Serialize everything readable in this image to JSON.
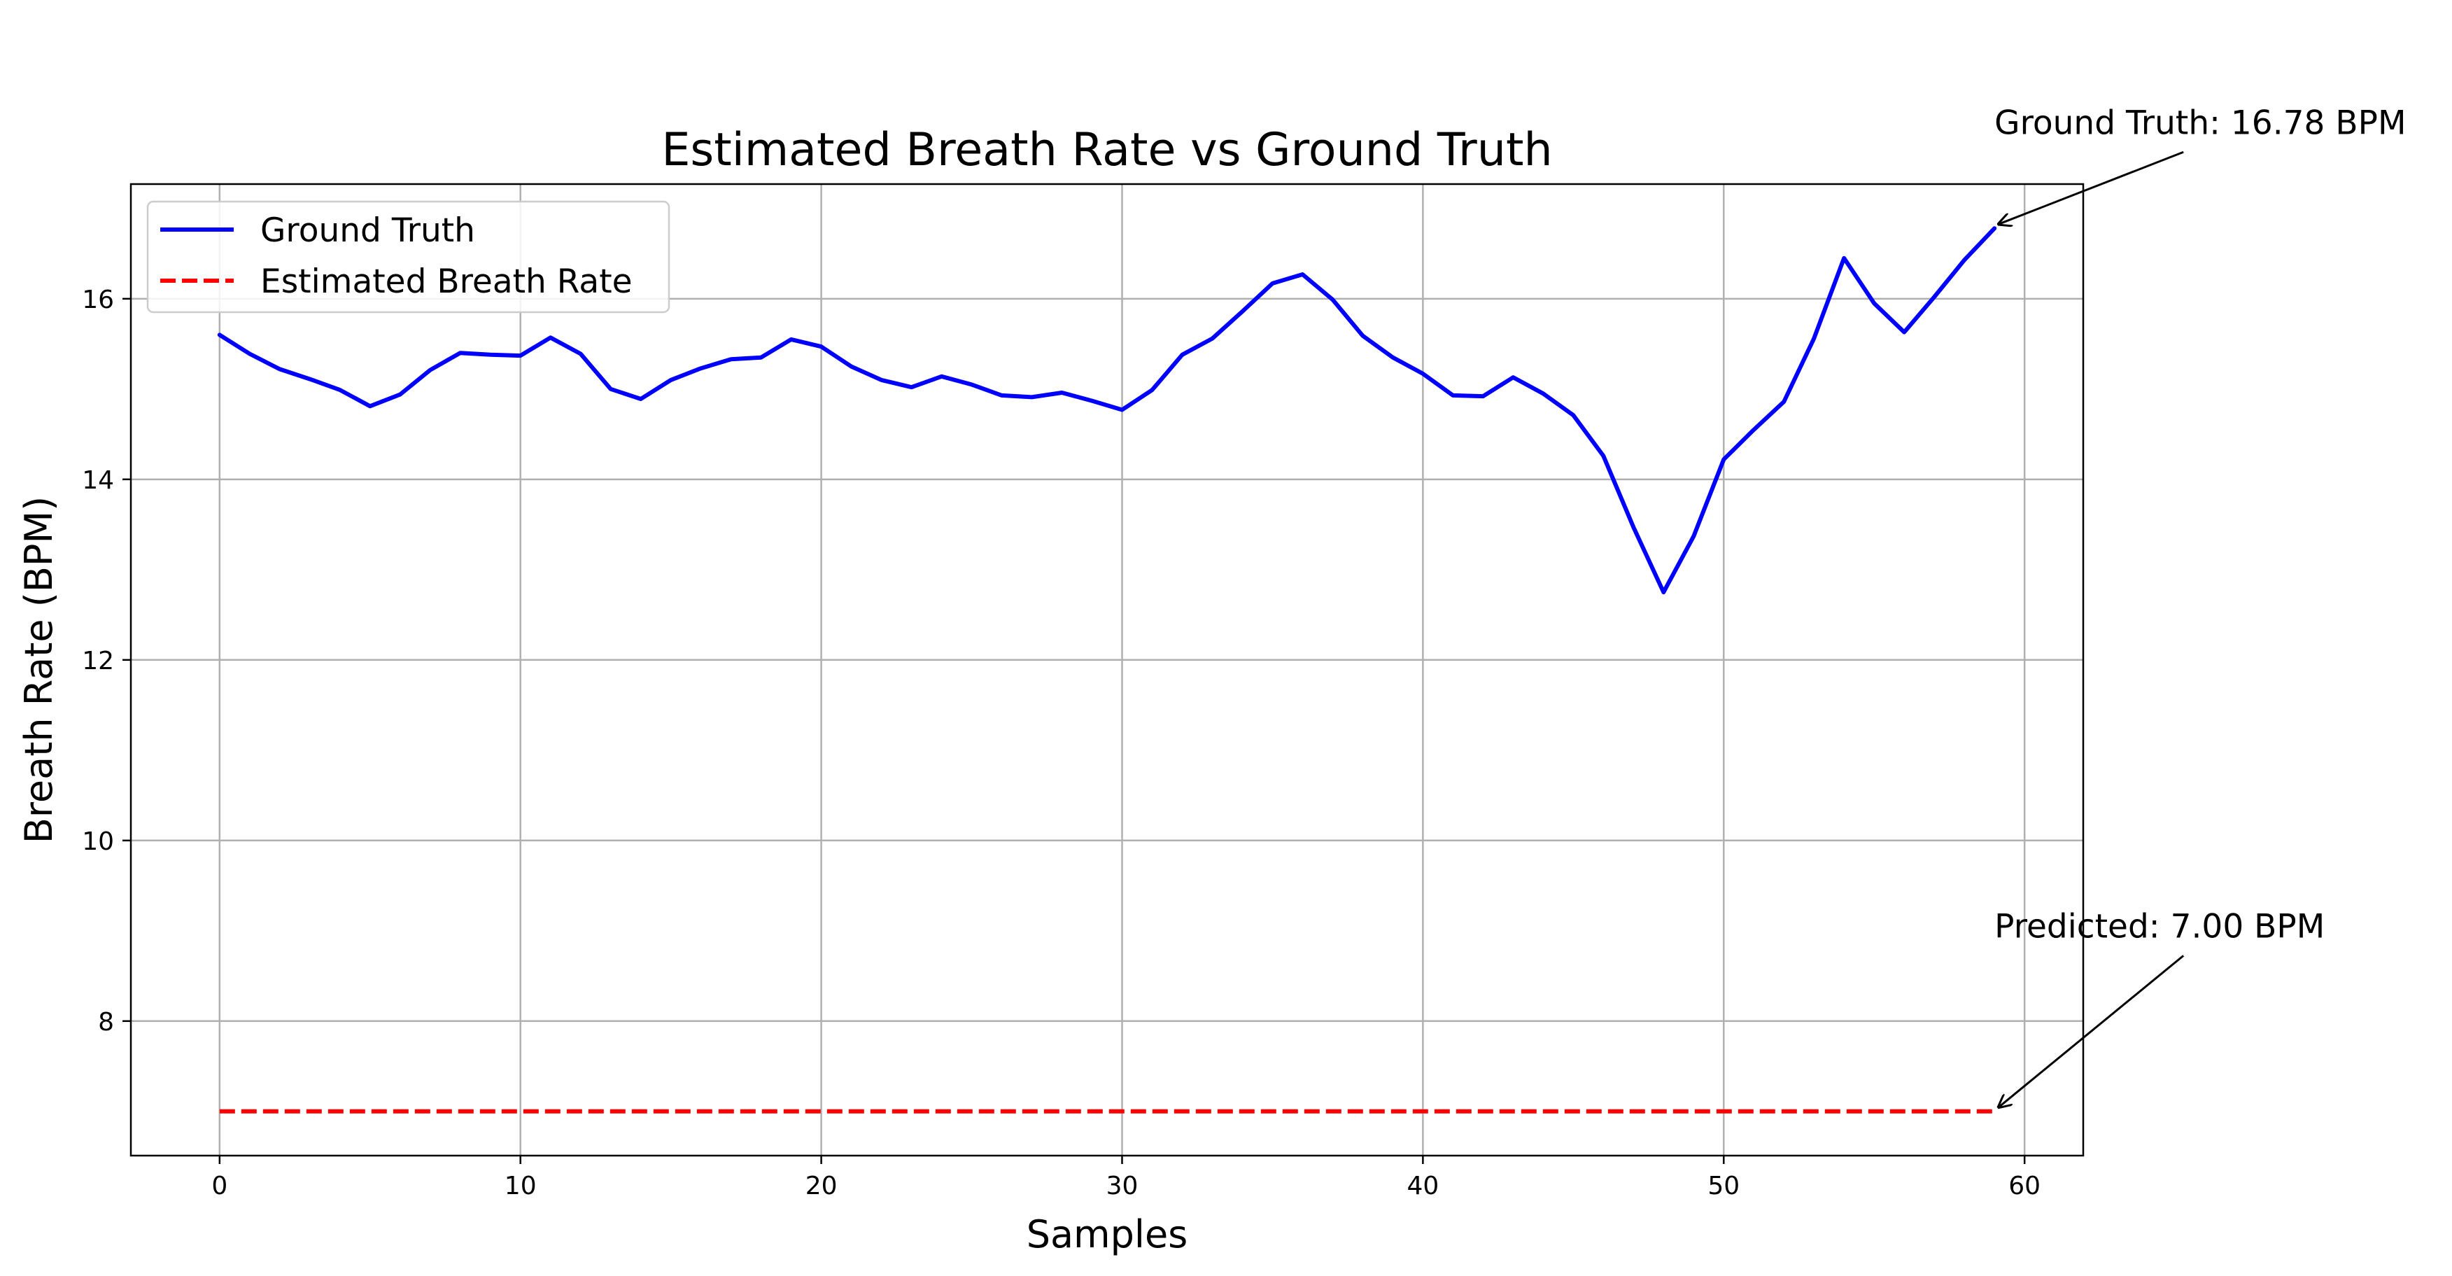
{
  "chart_data": {
    "type": "line",
    "title": "Estimated Breath Rate vs Ground Truth",
    "xlabel": "Samples",
    "ylabel": "Breath Rate (BPM)",
    "xlim": [
      -2.95,
      61.95
    ],
    "ylim": [
      6.51,
      17.27
    ],
    "xticks": [
      0,
      10,
      20,
      30,
      40,
      50,
      60
    ],
    "yticks": [
      8,
      10,
      12,
      14,
      16
    ],
    "grid": true,
    "legend_position": "upper-left",
    "x": [
      0,
      1,
      2,
      3,
      4,
      5,
      6,
      7,
      8,
      9,
      10,
      11,
      12,
      13,
      14,
      15,
      16,
      17,
      18,
      19,
      20,
      21,
      22,
      23,
      24,
      25,
      26,
      27,
      28,
      29,
      30,
      31,
      32,
      33,
      34,
      35,
      36,
      37,
      38,
      39,
      40,
      41,
      42,
      43,
      44,
      45,
      46,
      47,
      48,
      49,
      50,
      51,
      52,
      53,
      54,
      55,
      56,
      57,
      58,
      59
    ],
    "series": [
      {
        "name": "Ground Truth",
        "color": "#0000ff",
        "style": "solid",
        "values": [
          15.6,
          15.39,
          15.22,
          15.11,
          14.99,
          14.81,
          14.94,
          15.21,
          15.4,
          15.38,
          15.37,
          15.57,
          15.39,
          15.0,
          14.89,
          15.1,
          15.23,
          15.33,
          15.35,
          15.55,
          15.47,
          15.25,
          15.1,
          15.02,
          15.14,
          15.05,
          14.93,
          14.91,
          14.96,
          14.87,
          14.77,
          14.99,
          15.38,
          15.56,
          15.86,
          16.17,
          16.27,
          15.99,
          15.59,
          15.35,
          15.17,
          14.93,
          14.92,
          15.13,
          14.95,
          14.71,
          14.26,
          13.47,
          12.75,
          13.37,
          14.22,
          14.55,
          14.86,
          15.56,
          16.45,
          15.95,
          15.63,
          16.02,
          16.43,
          16.78
        ]
      },
      {
        "name": "Estimated Breath Rate",
        "color": "#ff0000",
        "style": "dashed",
        "values": [
          7.0,
          7.0,
          7.0,
          7.0,
          7.0,
          7.0,
          7.0,
          7.0,
          7.0,
          7.0,
          7.0,
          7.0,
          7.0,
          7.0,
          7.0,
          7.0,
          7.0,
          7.0,
          7.0,
          7.0,
          7.0,
          7.0,
          7.0,
          7.0,
          7.0,
          7.0,
          7.0,
          7.0,
          7.0,
          7.0,
          7.0,
          7.0,
          7.0,
          7.0,
          7.0,
          7.0,
          7.0,
          7.0,
          7.0,
          7.0,
          7.0,
          7.0,
          7.0,
          7.0,
          7.0,
          7.0,
          7.0,
          7.0,
          7.0,
          7.0,
          7.0,
          7.0,
          7.0,
          7.0,
          7.0,
          7.0,
          7.0,
          7.0,
          7.0,
          7.0
        ]
      }
    ],
    "annotations": [
      {
        "text": "Ground Truth: 16.78 BPM",
        "x": 59,
        "y": 16.78,
        "text_x": 59,
        "text_y": 17.95
      },
      {
        "text": "Predicted: 7.00 BPM",
        "x": 59,
        "y": 7.0,
        "text_x": 59,
        "text_y": 9.05
      }
    ]
  }
}
